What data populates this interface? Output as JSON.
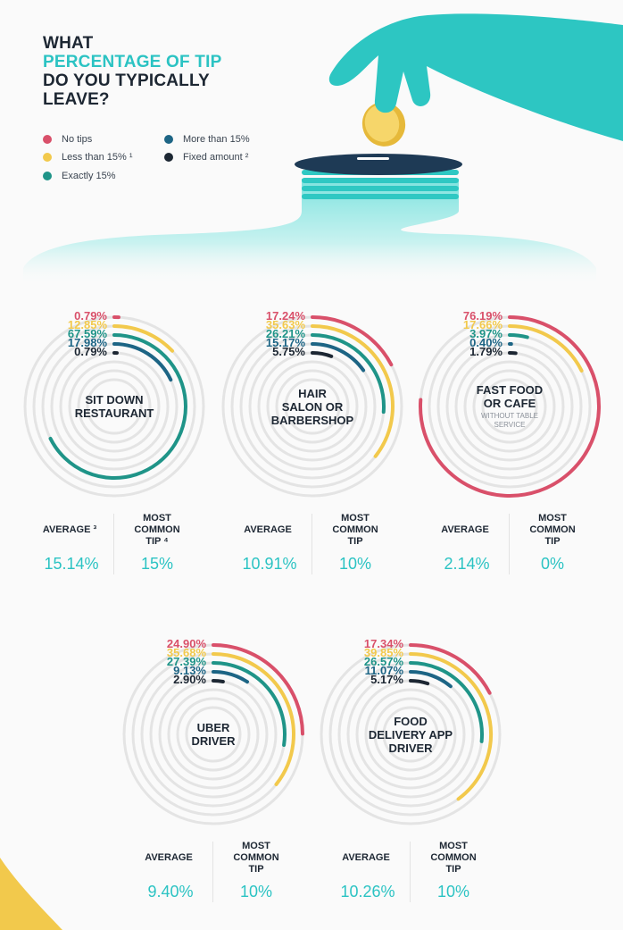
{
  "title": {
    "line1": "WHAT",
    "line2": "PERCENTAGE OF TIP",
    "line3": "DO YOU TYPICALLY",
    "line4": "LEAVE?"
  },
  "legend": [
    {
      "label": "No tips",
      "color": "#d9506a"
    },
    {
      "label": "Less than 15% ¹",
      "color": "#f2c94c"
    },
    {
      "label": "Exactly 15%",
      "color": "#1f9488"
    },
    {
      "label": "More than 15%",
      "color": "#1d6585"
    },
    {
      "label": "Fixed amount ²",
      "color": "#1d2733"
    }
  ],
  "colors": {
    "accent": "#2bc3c3",
    "track": "#e4e4e4"
  },
  "chart_data": [
    {
      "type": "radial-bar",
      "name_lines": [
        "SIT DOWN",
        "RESTAURANT"
      ],
      "sub": "",
      "series": [
        "No tips",
        "Less than 15%",
        "Exactly 15%",
        "More than 15%",
        "Fixed amount"
      ],
      "values": [
        0.79,
        12.85,
        67.59,
        17.98,
        0.79
      ],
      "labels": [
        "0.79%",
        "12.85%",
        "67.59%",
        "17.98%",
        "0.79%"
      ],
      "average_label": "AVERAGE ³",
      "average": "15.14%",
      "common_label": [
        "MOST",
        "COMMON",
        "TIP ⁴"
      ],
      "common": "15%"
    },
    {
      "type": "radial-bar",
      "name_lines": [
        "HAIR",
        "SALON OR",
        "BARBERSHOP"
      ],
      "sub": "",
      "series": [
        "No tips",
        "Less than 15%",
        "Exactly 15%",
        "More than 15%",
        "Fixed amount"
      ],
      "values": [
        17.24,
        35.63,
        26.21,
        15.17,
        5.75
      ],
      "labels": [
        "17.24%",
        "35.63%",
        "26.21%",
        "15.17%",
        "5.75%"
      ],
      "average_label": "AVERAGE",
      "average": "10.91%",
      "common_label": [
        "MOST",
        "COMMON",
        "TIP"
      ],
      "common": "10%"
    },
    {
      "type": "radial-bar",
      "name_lines": [
        "FAST FOOD",
        "OR CAFE"
      ],
      "sub": "WITHOUT TABLE SERVICE",
      "series": [
        "No tips",
        "Less than 15%",
        "Exactly 15%",
        "More than 15%",
        "Fixed amount"
      ],
      "values": [
        76.19,
        17.66,
        3.97,
        0.4,
        1.79
      ],
      "labels": [
        "76.19%",
        "17.66%",
        "3.97%",
        "0.40%",
        "1.79%"
      ],
      "average_label": "AVERAGE",
      "average": "2.14%",
      "common_label": [
        "MOST",
        "COMMON",
        "TIP"
      ],
      "common": "0%"
    },
    {
      "type": "radial-bar",
      "name_lines": [
        "UBER",
        "DRIVER"
      ],
      "sub": "",
      "series": [
        "No tips",
        "Less than 15%",
        "Exactly 15%",
        "More than 15%",
        "Fixed amount"
      ],
      "values": [
        24.9,
        35.68,
        27.39,
        9.13,
        2.9
      ],
      "labels": [
        "24.90%",
        "35.68%",
        "27.39%",
        "9.13%",
        "2.90%"
      ],
      "average_label": "AVERAGE",
      "average": "9.40%",
      "common_label": [
        "MOST",
        "COMMON",
        "TIP"
      ],
      "common": "10%"
    },
    {
      "type": "radial-bar",
      "name_lines": [
        "FOOD",
        "DELIVERY APP",
        "DRIVER"
      ],
      "sub": "",
      "series": [
        "No tips",
        "Less than 15%",
        "Exactly 15%",
        "More than 15%",
        "Fixed amount"
      ],
      "values": [
        17.34,
        39.85,
        26.57,
        11.07,
        5.17
      ],
      "labels": [
        "17.34%",
        "39.85%",
        "26.57%",
        "11.07%",
        "5.17%"
      ],
      "average_label": "AVERAGE",
      "average": "10.26%",
      "common_label": [
        "MOST",
        "COMMON",
        "TIP"
      ],
      "common": "10%"
    }
  ]
}
